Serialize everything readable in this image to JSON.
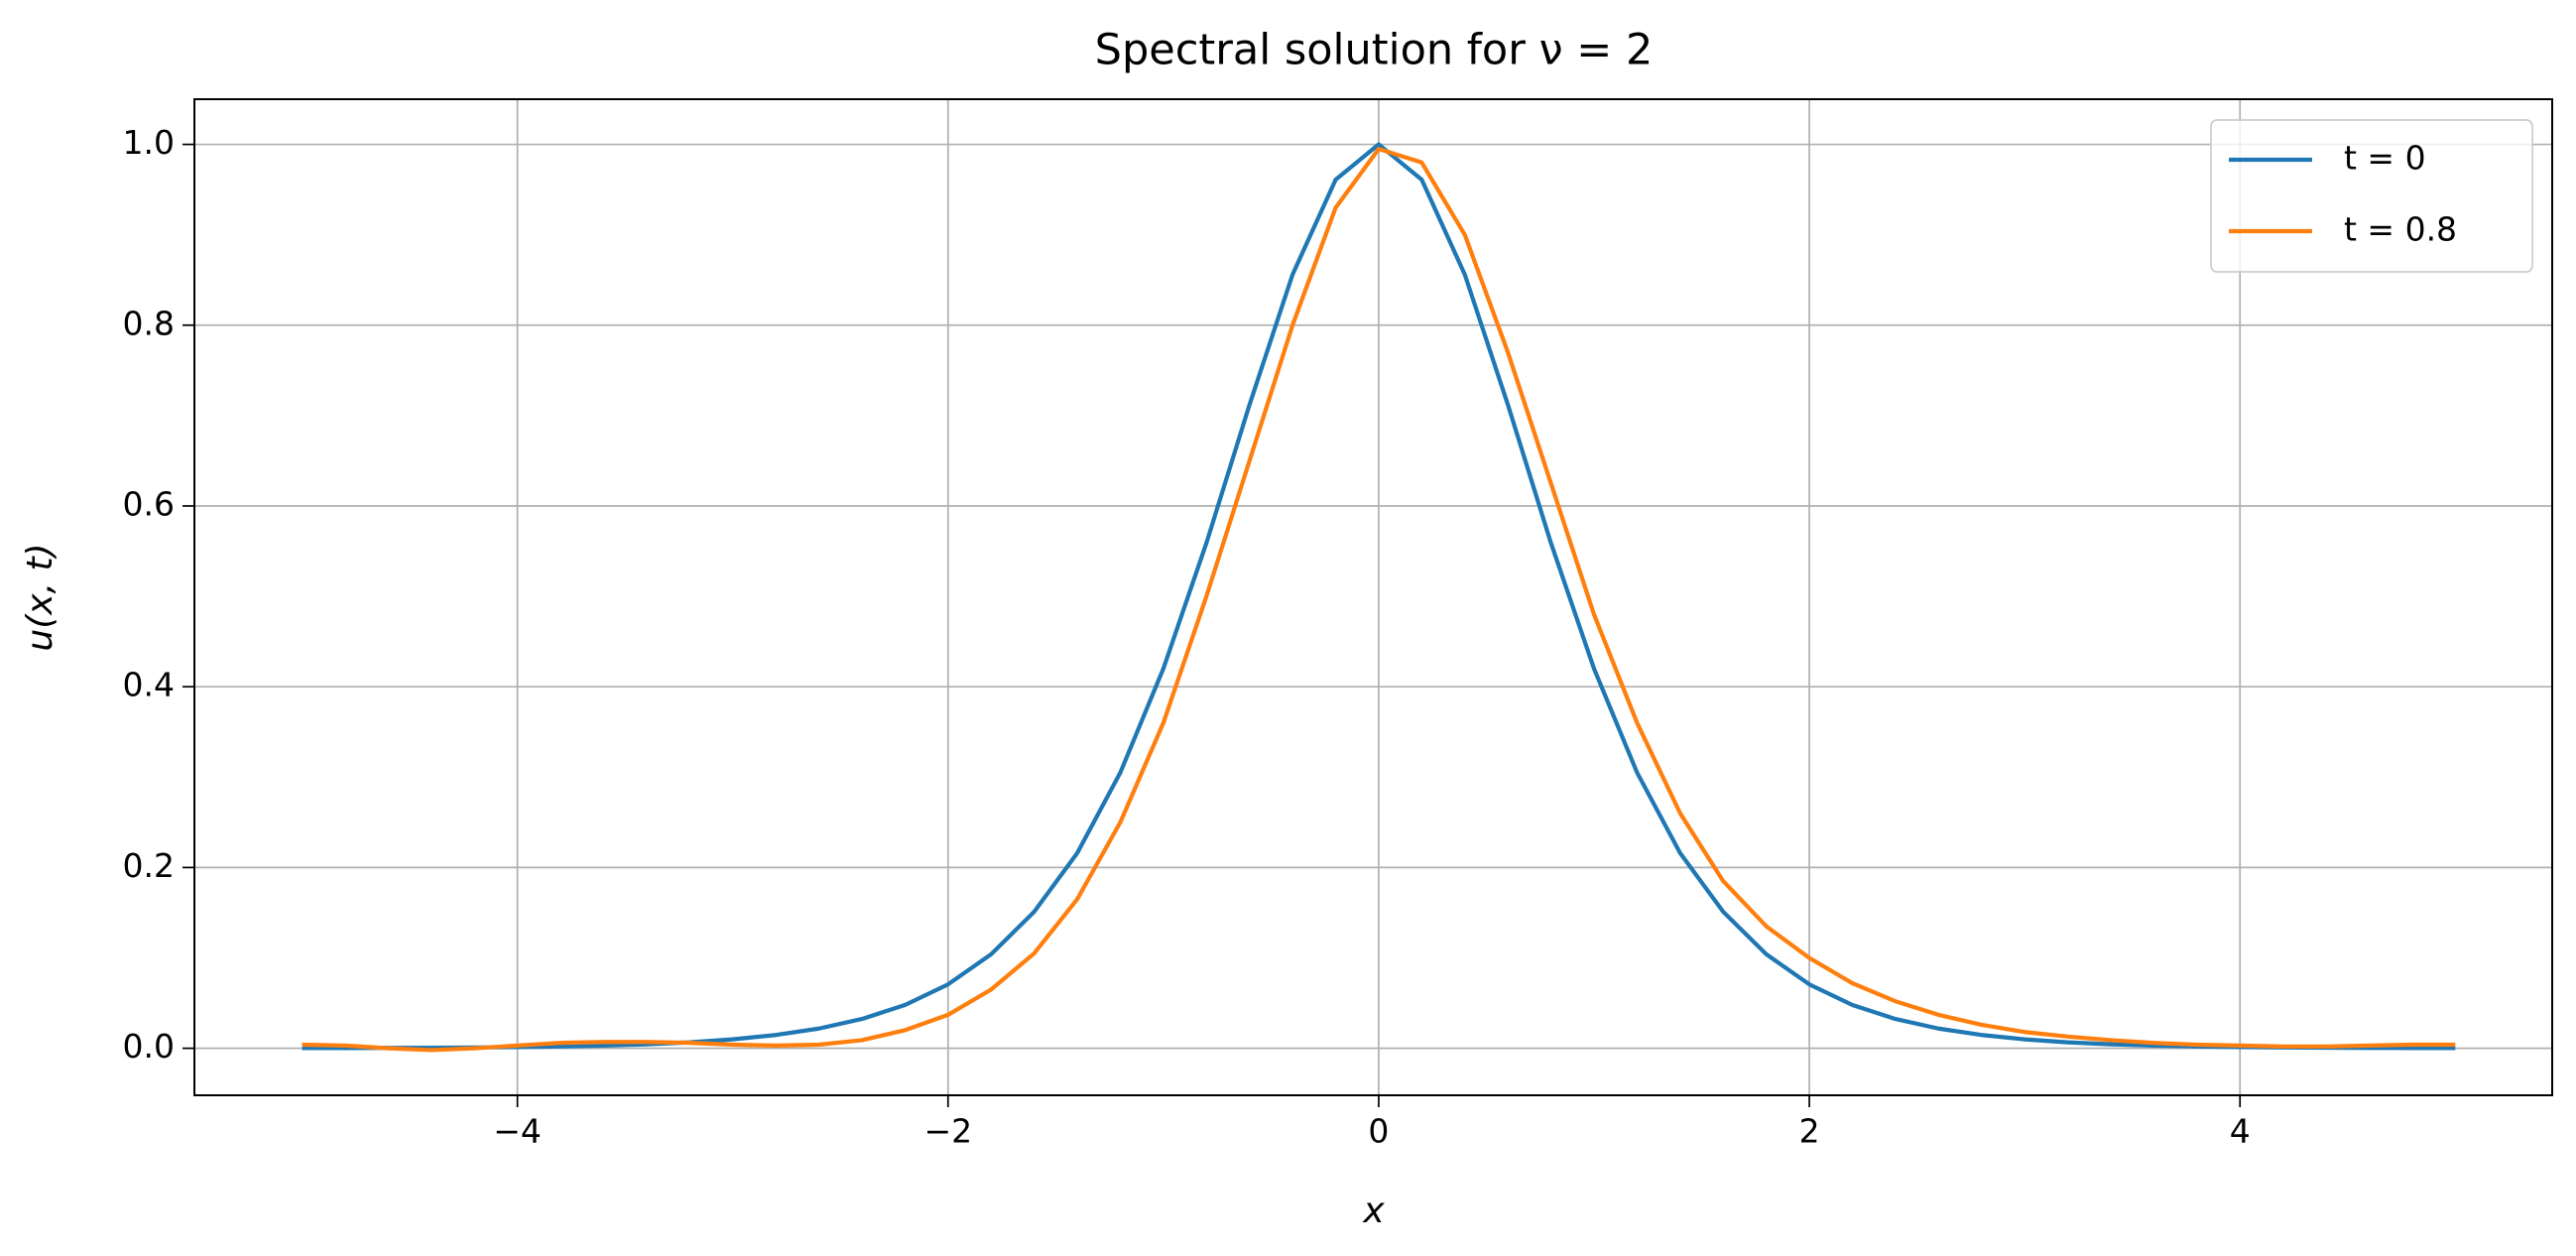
{
  "chart_data": {
    "type": "line",
    "title": "Spectral solution for ν = 2",
    "xlabel": "x",
    "ylabel": "u(x, t)",
    "x": [
      -5,
      -4.8,
      -4.6,
      -4.4,
      -4.2,
      -4,
      -3.8,
      -3.6,
      -3.4,
      -3.2,
      -3,
      -2.8,
      -2.6,
      -2.4,
      -2.2,
      -2,
      -1.8,
      -1.6,
      -1.4,
      -1.2,
      -1,
      -0.8,
      -0.6,
      -0.4,
      -0.2,
      0,
      0.2,
      0.4,
      0.6,
      0.8,
      1,
      1.2,
      1.4,
      1.6,
      1.8,
      2,
      2.2,
      2.4,
      2.6,
      2.8,
      3,
      3.2,
      3.4,
      3.6,
      3.8,
      4,
      4.2,
      4.4,
      4.6,
      4.8,
      5
    ],
    "series": [
      {
        "name": "t = 0",
        "color": "#1f77b4",
        "values": [
          0.0002,
          0.0003,
          0.0004,
          0.0006,
          0.0009,
          0.0013,
          0.002,
          0.003,
          0.0044,
          0.0066,
          0.0099,
          0.0147,
          0.0218,
          0.0324,
          0.0479,
          0.0707,
          0.104,
          0.151,
          0.216,
          0.305,
          0.42,
          0.559,
          0.712,
          0.856,
          0.961,
          1,
          0.961,
          0.856,
          0.712,
          0.559,
          0.42,
          0.305,
          0.216,
          0.151,
          0.104,
          0.0707,
          0.0479,
          0.0324,
          0.0218,
          0.0147,
          0.0099,
          0.0066,
          0.0044,
          0.003,
          0.002,
          0.0013,
          0.0009,
          0.0006,
          0.0004,
          0.0003,
          0.0002
        ]
      },
      {
        "name": "t = 0.8",
        "color": "#ff7f0e",
        "values": [
          0.004,
          0.003,
          0.0,
          -0.002,
          0.0,
          0.003,
          0.006,
          0.007,
          0.007,
          0.006,
          0.004,
          0.003,
          0.004,
          0.009,
          0.02,
          0.037,
          0.065,
          0.105,
          0.165,
          0.25,
          0.36,
          0.5,
          0.65,
          0.8,
          0.93,
          0.995,
          0.98,
          0.9,
          0.77,
          0.625,
          0.48,
          0.36,
          0.26,
          0.185,
          0.135,
          0.1,
          0.072,
          0.052,
          0.037,
          0.026,
          0.018,
          0.013,
          0.009,
          0.006,
          0.004,
          0.003,
          0.002,
          0.002,
          0.003,
          0.004,
          0.004
        ]
      }
    ],
    "xlim": [
      -5.5,
      5.45
    ],
    "ylim": [
      -0.052,
      1.05
    ],
    "xticks": [
      {
        "value": -4,
        "label": "−4"
      },
      {
        "value": -2,
        "label": "−2"
      },
      0,
      2,
      4
    ],
    "yticks": [
      {
        "value": 0,
        "label": "0.0"
      },
      {
        "value": 0.2,
        "label": "0.2"
      },
      {
        "value": 0.4,
        "label": "0.4"
      },
      {
        "value": 0.6,
        "label": "0.6"
      },
      {
        "value": 0.8,
        "label": "0.8"
      },
      {
        "value": 1,
        "label": "1.0"
      }
    ],
    "grid": true,
    "legend": "upper right"
  }
}
